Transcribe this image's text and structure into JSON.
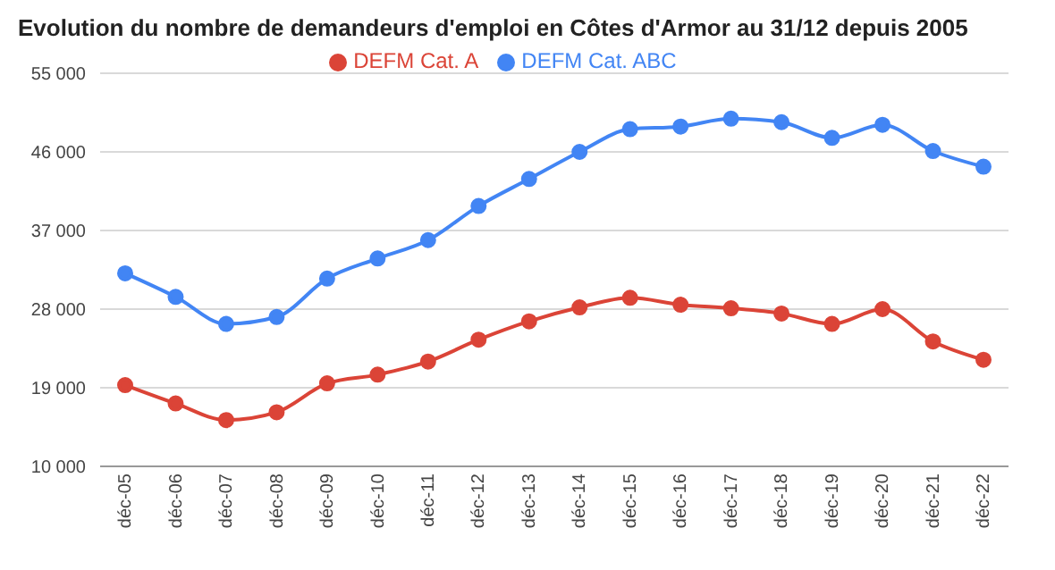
{
  "chart_data": {
    "type": "line",
    "title": "Evolution du nombre de demandeurs d'emploi en Côtes d'Armor au 31/12 depuis 2005",
    "categories": [
      "déc-05",
      "déc-06",
      "déc-07",
      "déc-08",
      "déc-09",
      "déc-10",
      "déc-11",
      "déc-12",
      "déc-13",
      "déc-14",
      "déc-15",
      "déc-16",
      "déc-17",
      "déc-18",
      "déc-19",
      "déc-20",
      "déc-21",
      "déc-22"
    ],
    "series": [
      {
        "name": "DEFM Cat. ABC",
        "color": "#4285f4",
        "values": [
          32100,
          29400,
          26300,
          27100,
          31500,
          33800,
          35900,
          39800,
          42900,
          46000,
          48600,
          48900,
          49800,
          49400,
          47600,
          49100,
          46100,
          44300
        ]
      },
      {
        "name": "DEFM Cat. A",
        "color": "#db4437",
        "values": [
          19300,
          17200,
          15300,
          16200,
          19500,
          20500,
          22000,
          24500,
          26600,
          28200,
          29300,
          28500,
          28100,
          27500,
          26300,
          28000,
          24300,
          22200
        ]
      }
    ],
    "ylim": [
      10000,
      55000
    ],
    "yticks": [
      {
        "value": 10000,
        "label": "10 000"
      },
      {
        "value": 19000,
        "label": "19 000"
      },
      {
        "value": 28000,
        "label": "28 000"
      },
      {
        "value": 37000,
        "label": "37 000"
      },
      {
        "value": 46000,
        "label": "46 000"
      },
      {
        "value": 55000,
        "label": "55 000"
      }
    ],
    "grid": "y",
    "legend": "top",
    "marker": "circle",
    "line_style": "solid"
  }
}
